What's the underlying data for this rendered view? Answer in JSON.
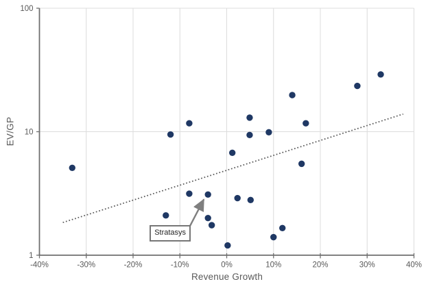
{
  "chart_data": {
    "type": "scatter",
    "title": "",
    "xlabel": "Revenue Growth",
    "ylabel": "EV/GP",
    "xlim": [
      -40,
      40
    ],
    "ylim": [
      1,
      100
    ],
    "y_scale": "log",
    "grid": true,
    "legend": "none",
    "x_ticks": [
      {
        "value": -40,
        "label": "-40%"
      },
      {
        "value": -30,
        "label": "-30%"
      },
      {
        "value": -20,
        "label": "-20%"
      },
      {
        "value": -10,
        "label": "-10%"
      },
      {
        "value": 0,
        "label": "0%"
      },
      {
        "value": 10,
        "label": "10%"
      },
      {
        "value": 20,
        "label": "20%"
      },
      {
        "value": 30,
        "label": "30%"
      },
      {
        "value": 40,
        "label": "40%"
      }
    ],
    "y_ticks": [
      {
        "value": 1,
        "label": "1"
      },
      {
        "value": 10,
        "label": "10"
      },
      {
        "value": 100,
        "label": "100"
      }
    ],
    "points": [
      {
        "x": -33,
        "y": 5.1
      },
      {
        "x": -13,
        "y": 2.1
      },
      {
        "x": -12,
        "y": 9.5
      },
      {
        "x": -8,
        "y": 11.7
      },
      {
        "x": -8,
        "y": 3.15
      },
      {
        "x": -4,
        "y": 3.1
      },
      {
        "x": -4,
        "y": 2.0
      },
      {
        "x": -3.2,
        "y": 1.75
      },
      {
        "x": 0.2,
        "y": 1.2
      },
      {
        "x": 1.2,
        "y": 6.75
      },
      {
        "x": 2.3,
        "y": 2.9
      },
      {
        "x": 4.9,
        "y": 13.0
      },
      {
        "x": 4.9,
        "y": 9.4
      },
      {
        "x": 5.1,
        "y": 2.8
      },
      {
        "x": 9,
        "y": 9.9
      },
      {
        "x": 10,
        "y": 1.4
      },
      {
        "x": 11.9,
        "y": 1.66
      },
      {
        "x": 14,
        "y": 19.8
      },
      {
        "x": 16,
        "y": 5.5
      },
      {
        "x": 16.9,
        "y": 11.7
      },
      {
        "x": 27.9,
        "y": 23.5
      },
      {
        "x": 32.9,
        "y": 29.1
      }
    ],
    "trendline": {
      "style": "dotted",
      "x1": -35,
      "y1": 1.84,
      "x2": 37.7,
      "y2": 13.9
    },
    "annotation": {
      "label": "Stratasys",
      "target_x": -4,
      "target_y": 3.1
    },
    "colors": {
      "point": "#1F3864",
      "trendline": "#595959",
      "axis": "#6f6f6f",
      "gridline": "#dcdcdc",
      "tick_label": "#595959",
      "annotation_border": "#767676",
      "annotation_text": "#1f1f1f",
      "arrow": "#7f7f7f",
      "background": "#ffffff"
    }
  }
}
